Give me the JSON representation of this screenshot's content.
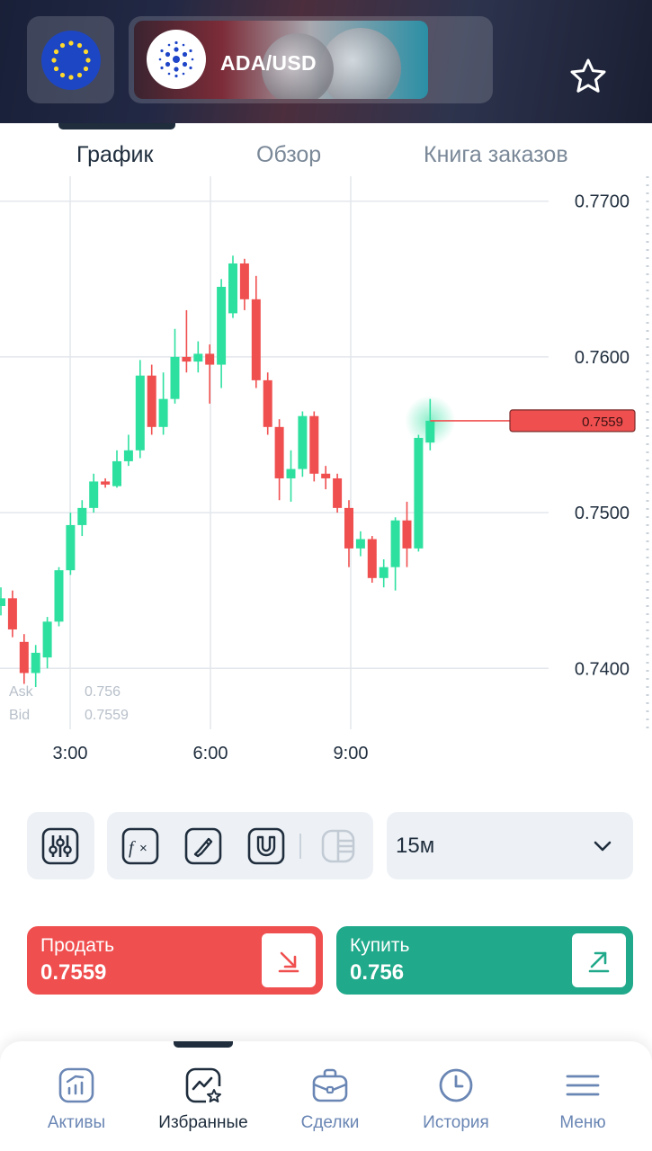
{
  "header": {
    "pair": "ADA/USD",
    "flag_icon": "eu-flag-icon",
    "coin_icon": "cardano-icon",
    "favorite_icon": "star-icon"
  },
  "tabs": [
    {
      "label": "График",
      "active": true
    },
    {
      "label": "Обзор",
      "active": false
    },
    {
      "label": "Книга заказов",
      "active": false
    }
  ],
  "chart": {
    "ask_label": "Ask",
    "bid_label": "Bid",
    "ask_value": "0.756",
    "bid_value": "0.7559",
    "current_price": "0.7559",
    "colors": {
      "up": "#2ee0a0",
      "down": "#f04f4f",
      "price_tag": "#f04f4f"
    }
  },
  "chart_data": {
    "type": "candlestick",
    "y_ticks": [
      "0.7700",
      "0.7600",
      "0.7500",
      "0.7400"
    ],
    "ylim": [
      0.7358,
      0.7716
    ],
    "x_ticks": [
      "3:00",
      "6:00",
      "9:00"
    ],
    "candles": [
      {
        "o": 0.744,
        "c": 0.7445,
        "h": 0.7452,
        "l": 0.7434
      },
      {
        "o": 0.7445,
        "c": 0.7425,
        "h": 0.745,
        "l": 0.742
      },
      {
        "o": 0.7417,
        "c": 0.7397,
        "h": 0.7422,
        "l": 0.739
      },
      {
        "o": 0.7397,
        "c": 0.741,
        "h": 0.7415,
        "l": 0.7388
      },
      {
        "o": 0.7407,
        "c": 0.743,
        "h": 0.7433,
        "l": 0.74
      },
      {
        "o": 0.743,
        "c": 0.7463,
        "h": 0.7465,
        "l": 0.7427
      },
      {
        "o": 0.7463,
        "c": 0.7492,
        "h": 0.75,
        "l": 0.746
      },
      {
        "o": 0.7492,
        "c": 0.7503,
        "h": 0.7508,
        "l": 0.7485
      },
      {
        "o": 0.7503,
        "c": 0.752,
        "h": 0.7525,
        "l": 0.75
      },
      {
        "o": 0.752,
        "c": 0.7518,
        "h": 0.7522,
        "l": 0.7516
      },
      {
        "o": 0.7517,
        "c": 0.7533,
        "h": 0.754,
        "l": 0.7516
      },
      {
        "o": 0.7533,
        "c": 0.754,
        "h": 0.755,
        "l": 0.753
      },
      {
        "o": 0.754,
        "c": 0.7588,
        "h": 0.7598,
        "l": 0.7535
      },
      {
        "o": 0.7588,
        "c": 0.7555,
        "h": 0.7595,
        "l": 0.755
      },
      {
        "o": 0.7555,
        "c": 0.7573,
        "h": 0.759,
        "l": 0.755
      },
      {
        "o": 0.7573,
        "c": 0.76,
        "h": 0.7618,
        "l": 0.757
      },
      {
        "o": 0.76,
        "c": 0.7597,
        "h": 0.763,
        "l": 0.759
      },
      {
        "o": 0.7597,
        "c": 0.7602,
        "h": 0.761,
        "l": 0.759
      },
      {
        "o": 0.7602,
        "c": 0.7595,
        "h": 0.7608,
        "l": 0.757
      },
      {
        "o": 0.7595,
        "c": 0.7645,
        "h": 0.765,
        "l": 0.758
      },
      {
        "o": 0.7628,
        "c": 0.766,
        "h": 0.7665,
        "l": 0.7625
      },
      {
        "o": 0.766,
        "c": 0.7637,
        "h": 0.7663,
        "l": 0.763
      },
      {
        "o": 0.7637,
        "c": 0.7585,
        "h": 0.7652,
        "l": 0.758
      },
      {
        "o": 0.7585,
        "c": 0.7555,
        "h": 0.759,
        "l": 0.755
      },
      {
        "o": 0.7555,
        "c": 0.7522,
        "h": 0.756,
        "l": 0.7508
      },
      {
        "o": 0.7522,
        "c": 0.7528,
        "h": 0.754,
        "l": 0.7507
      },
      {
        "o": 0.7528,
        "c": 0.7562,
        "h": 0.7565,
        "l": 0.7523
      },
      {
        "o": 0.7562,
        "c": 0.7525,
        "h": 0.7565,
        "l": 0.752
      },
      {
        "o": 0.7525,
        "c": 0.7522,
        "h": 0.753,
        "l": 0.7515
      },
      {
        "o": 0.7522,
        "c": 0.7503,
        "h": 0.7525,
        "l": 0.75
      },
      {
        "o": 0.7503,
        "c": 0.7477,
        "h": 0.7508,
        "l": 0.7465
      },
      {
        "o": 0.7477,
        "c": 0.7483,
        "h": 0.7488,
        "l": 0.7472
      },
      {
        "o": 0.7483,
        "c": 0.7458,
        "h": 0.7485,
        "l": 0.7455
      },
      {
        "o": 0.7458,
        "c": 0.7465,
        "h": 0.747,
        "l": 0.7452
      },
      {
        "o": 0.7465,
        "c": 0.7495,
        "h": 0.7497,
        "l": 0.745
      },
      {
        "o": 0.7495,
        "c": 0.7477,
        "h": 0.7507,
        "l": 0.7465
      },
      {
        "o": 0.7477,
        "c": 0.7548,
        "h": 0.755,
        "l": 0.7475
      },
      {
        "o": 0.7545,
        "c": 0.7559,
        "h": 0.7573,
        "l": 0.754
      }
    ]
  },
  "toolbar": {
    "timeframe": "15м",
    "icons": [
      "settings-sliders-icon",
      "function-icon",
      "drawing-icon",
      "magnet-icon",
      "layout-icon",
      "chevron-down-icon"
    ]
  },
  "trade": {
    "sell_label": "Продать",
    "sell_price": "0.7559",
    "buy_label": "Купить",
    "buy_price": "0.756",
    "sell_color": "#f04f4f",
    "buy_color": "#20a98a"
  },
  "nav": [
    {
      "label": "Активы",
      "icon": "chart-growth-icon",
      "active": false
    },
    {
      "label": "Избранные",
      "icon": "favorite-chart-icon",
      "active": true
    },
    {
      "label": "Сделки",
      "icon": "briefcase-icon",
      "active": false
    },
    {
      "label": "История",
      "icon": "clock-icon",
      "active": false
    },
    {
      "label": "Меню",
      "icon": "menu-icon",
      "active": false
    }
  ]
}
